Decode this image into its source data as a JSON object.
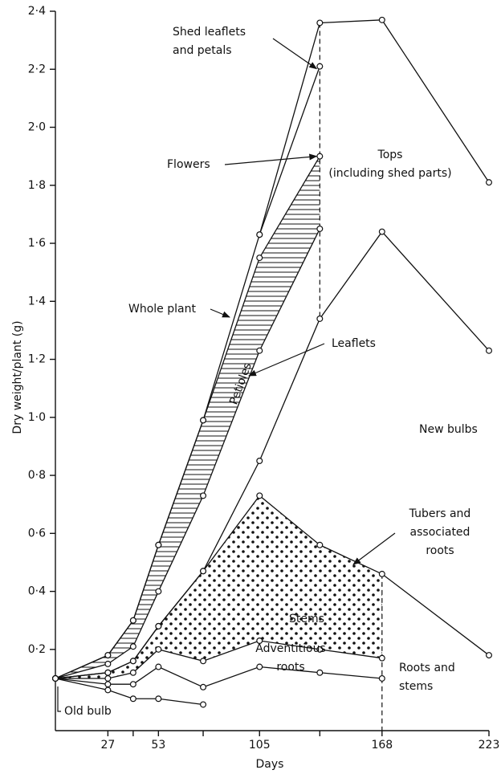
{
  "chart_data": {
    "type": "line",
    "y_label": "Dry weight/plant (g)",
    "x_label": "Days",
    "x": [
      0,
      27,
      40,
      53,
      76,
      105,
      136,
      168,
      223
    ],
    "xlim": [
      0,
      223
    ],
    "xticks": [
      27,
      53,
      105,
      168,
      223
    ],
    "minor_xticks": [
      40,
      76,
      136
    ],
    "ylim": [
      -0.08,
      2.4
    ],
    "yticks": [
      {
        "value": 0.2,
        "label": "0·2"
      },
      {
        "value": 0.4,
        "label": "0·4"
      },
      {
        "value": 0.6,
        "label": "0·6"
      },
      {
        "value": 0.8,
        "label": "0·8"
      },
      {
        "value": 1.0,
        "label": "1·0"
      },
      {
        "value": 1.2,
        "label": "1·2"
      },
      {
        "value": 1.4,
        "label": "1·4"
      },
      {
        "value": 1.6,
        "label": "1·6"
      },
      {
        "value": 1.8,
        "label": "1·8"
      },
      {
        "value": 2.0,
        "label": "2·0"
      },
      {
        "value": 2.2,
        "label": "2·2"
      },
      {
        "value": 2.4,
        "label": "2·4"
      }
    ],
    "color": "#111111",
    "series": [
      {
        "values": [
          0.1,
          0.18,
          0.3,
          0.56,
          0.99,
          1.63,
          2.36,
          2.37,
          1.81
        ]
      },
      {
        "values": [
          null,
          null,
          null,
          null,
          null,
          1.63,
          2.21,
          null,
          null
        ]
      },
      {
        "values": [
          0.1,
          0.18,
          0.3,
          0.56,
          0.99,
          1.55,
          1.9,
          null,
          null
        ]
      },
      {
        "values": [
          0.1,
          0.15,
          0.21,
          0.4,
          0.73,
          1.23,
          1.65,
          null,
          null
        ]
      },
      {
        "values": [
          0.1,
          0.12,
          0.16,
          0.28,
          0.47,
          0.85,
          1.34,
          1.64,
          1.23
        ]
      },
      {
        "values": [
          0.1,
          0.12,
          0.16,
          0.28,
          0.47,
          0.73,
          0.56,
          0.46,
          0.18
        ]
      },
      {
        "values": [
          0.1,
          0.1,
          0.12,
          0.2,
          0.16,
          0.23,
          0.2,
          0.17,
          null
        ]
      },
      {
        "values": [
          0.1,
          0.08,
          0.08,
          0.14,
          0.07,
          0.14,
          0.12,
          0.1,
          null
        ]
      },
      {
        "values": [
          0.1,
          0.06,
          0.03,
          0.03,
          0.01,
          null,
          null,
          null,
          null
        ]
      }
    ],
    "annotations": [
      {
        "lines": [
          "Shed leaflets",
          "and petals"
        ]
      },
      {
        "lines": [
          "Flowers"
        ]
      },
      {
        "lines": [
          "Tops",
          "(including shed parts)"
        ]
      },
      {
        "lines": [
          "Whole plant"
        ]
      },
      {
        "lines": [
          "Leaflets"
        ]
      },
      {
        "lines": [
          "Petioles"
        ]
      },
      {
        "lines": [
          "New bulbs"
        ]
      },
      {
        "lines": [
          "Tubers and",
          "associated",
          "roots"
        ]
      },
      {
        "lines": [
          "Stems"
        ]
      },
      {
        "lines": [
          "Roots and",
          "stems"
        ]
      },
      {
        "lines": [
          "Adventitious",
          "roots"
        ]
      },
      {
        "lines": [
          "Old bulb"
        ]
      }
    ]
  }
}
